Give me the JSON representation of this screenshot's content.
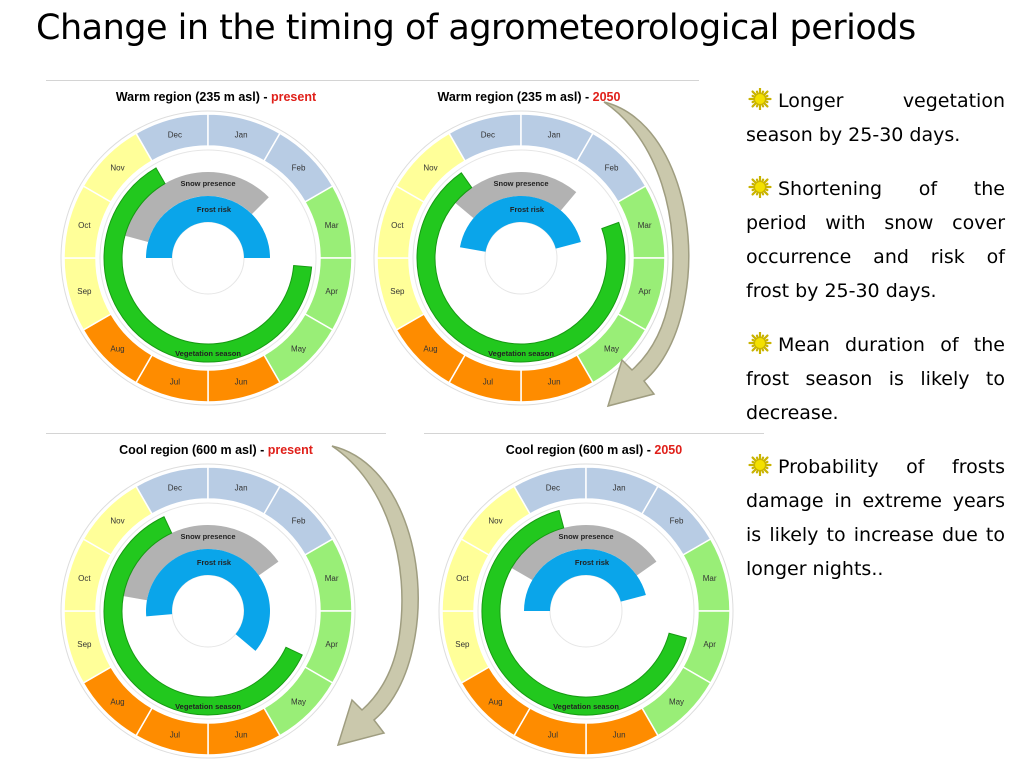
{
  "title": "Change in the timing of agrometeorological periods",
  "months": [
    "Dec",
    "Jan",
    "Feb",
    "Mar",
    "Apr",
    "May",
    "Jun",
    "Jul",
    "Aug",
    "Sep",
    "Oct",
    "Nov"
  ],
  "month_colors": [
    "#b8cce4",
    "#b8cce4",
    "#b8cce4",
    "#99ee77",
    "#99ee77",
    "#99ee77",
    "#fe8c00",
    "#fe8c00",
    "#fe8c00",
    "#ffff99",
    "#ffff99",
    "#ffff99"
  ],
  "series_colors": {
    "vegetation": "#22c81e",
    "snow": "#b2b2b2",
    "frost": "#0aa5ea"
  },
  "panels": [
    {
      "region": "Warm region  (235 m asl)",
      "dash": " - ",
      "period": "present",
      "vegetation_label": "Vegetation season",
      "snow_label": "Snow presence",
      "frost_label": "Frost risk",
      "vegetation_span_deg": [
        -30,
        95
      ],
      "snow_span_deg": [
        -75,
        45
      ],
      "frost_span_deg": [
        -90,
        90
      ]
    },
    {
      "region": "Warm region  (235 m asl)",
      "dash": " - ",
      "period": "2050",
      "vegetation_label": "Vegetation season",
      "snow_label": "Snow presence",
      "frost_label": "Frost risk",
      "vegetation_span_deg": [
        -35,
        70
      ],
      "snow_span_deg": [
        -50,
        40
      ],
      "frost_span_deg": [
        -80,
        75
      ]
    },
    {
      "region": "Cool region  (600 m asl)",
      "dash": " - ",
      "period": "present",
      "vegetation_label": "Vegetation season",
      "snow_label": "Snow presence",
      "frost_label": "Frost risk",
      "vegetation_span_deg": [
        -25,
        115
      ],
      "snow_span_deg": [
        -80,
        55
      ],
      "frost_span_deg": [
        -95,
        130
      ]
    },
    {
      "region": "Cool region  (600 m asl)",
      "dash": " - ",
      "period": "2050",
      "vegetation_label": "Vegetation season",
      "snow_label": "Snow presence",
      "frost_label": "Frost risk",
      "vegetation_span_deg": [
        -15,
        105
      ],
      "snow_span_deg": [
        -60,
        55
      ],
      "frost_span_deg": [
        -90,
        75
      ]
    }
  ],
  "bullets": [
    "Longer vegetation season by 25-30 days.",
    "Shortening of the period with snow cover occurrence and risk of frost by 25-30 days.",
    "Mean duration of the frost season is likely to decrease.",
    "Probability of frosts damage in extreme years is likely to increase due to longer nights.."
  ],
  "bullet_icon": "sun-burst-icon"
}
